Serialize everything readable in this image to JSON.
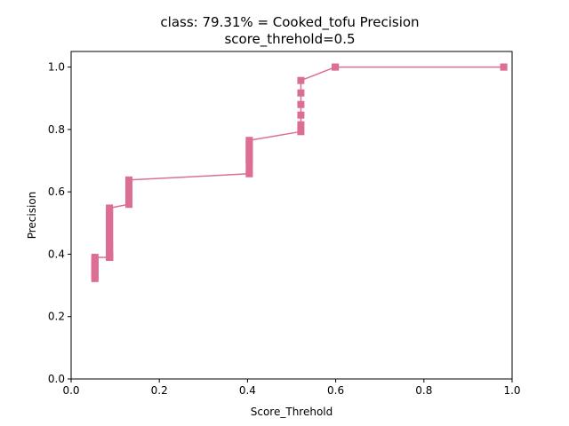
{
  "chart_data": {
    "type": "line",
    "title": "class: 79.31% = Cooked_tofu Precision",
    "subtitle": "score_threhold=0.5",
    "xlabel": "Score_Threhold",
    "ylabel": "Precision",
    "xlim": [
      0.0,
      1.0
    ],
    "ylim": [
      0.0,
      1.05
    ],
    "x_ticks": [
      0.0,
      0.2,
      0.4,
      0.6,
      0.8,
      1.0
    ],
    "x_tick_labels": [
      "0.0",
      "0.2",
      "0.4",
      "0.6",
      "0.8",
      "1.0"
    ],
    "y_ticks": [
      0.0,
      0.2,
      0.4,
      0.6,
      0.8,
      1.0
    ],
    "y_tick_labels": [
      "0.0",
      "0.2",
      "0.4",
      "0.6",
      "0.8",
      "1.0"
    ],
    "grid": false,
    "marker": "square",
    "color": "#dc6e96",
    "series": [
      {
        "x": [
          0.981,
          0.981,
          0.599,
          0.599,
          0.521,
          0.521,
          0.521,
          0.521,
          0.521,
          0.521,
          0.404,
          0.404,
          0.404,
          0.404,
          0.404,
          0.404,
          0.404,
          0.404,
          0.404,
          0.404,
          0.404,
          0.404,
          0.404,
          0.131,
          0.131,
          0.131,
          0.131,
          0.131,
          0.131,
          0.131,
          0.131,
          0.131,
          0.131,
          0.087,
          0.087,
          0.087,
          0.087,
          0.087,
          0.087,
          0.087,
          0.087,
          0.087,
          0.087,
          0.087,
          0.087,
          0.087,
          0.087,
          0.087,
          0.087,
          0.087,
          0.087,
          0.087,
          0.087,
          0.087,
          0.087,
          0.087,
          0.087,
          0.087,
          0.087,
          0.087,
          0.087,
          0.087,
          0.087,
          0.087,
          0.087,
          0.087,
          0.087,
          0.087,
          0.087,
          0.087,
          0.054,
          0.054,
          0.054,
          0.054,
          0.054,
          0.054,
          0.054,
          0.054,
          0.054,
          0.054,
          0.054,
          0.054,
          0.054,
          0.054
        ],
        "y": [
          1.0,
          1.0,
          1.0,
          1.0,
          0.957,
          0.917,
          0.88,
          0.846,
          0.815,
          0.793,
          0.765,
          0.757,
          0.75,
          0.742,
          0.735,
          0.727,
          0.72,
          0.712,
          0.705,
          0.697,
          0.69,
          0.67,
          0.658,
          0.638,
          0.632,
          0.625,
          0.618,
          0.611,
          0.6,
          0.59,
          0.58,
          0.57,
          0.56,
          0.548,
          0.54,
          0.532,
          0.525,
          0.517,
          0.51,
          0.502,
          0.495,
          0.487,
          0.48,
          0.472,
          0.465,
          0.457,
          0.45,
          0.442,
          0.435,
          0.43,
          0.425,
          0.42,
          0.415,
          0.41,
          0.405,
          0.4,
          0.398,
          0.397,
          0.396,
          0.395,
          0.394,
          0.393,
          0.393,
          0.392,
          0.392,
          0.391,
          0.391,
          0.39,
          0.39,
          0.39,
          0.39,
          0.384,
          0.378,
          0.372,
          0.366,
          0.36,
          0.355,
          0.35,
          0.345,
          0.34,
          0.335,
          0.33,
          0.325,
          0.322
        ]
      }
    ]
  }
}
